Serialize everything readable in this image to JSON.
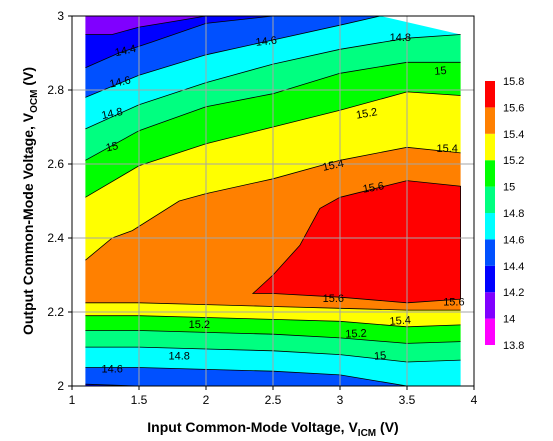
{
  "chart_data": {
    "type": "contour",
    "xlabel": {
      "main": "Input Common-Mode Voltage, V",
      "sub": "ICM",
      "unit": " (V)"
    },
    "ylabel": {
      "main": "Output Common-Mode Voltage, V",
      "sub": "OCM",
      "unit": " (V)"
    },
    "xlim": [
      1,
      4
    ],
    "ylim": [
      2,
      3
    ],
    "x_ticks": [
      "1",
      "1.5",
      "2",
      "2.5",
      "3",
      "3.5",
      "4"
    ],
    "y_ticks": [
      "2",
      "2.2",
      "2.4",
      "2.6",
      "2.8",
      "3"
    ],
    "grid": true,
    "data_x_range": [
      1.1,
      3.9
    ],
    "colorbar": {
      "levels": [
        13.8,
        14,
        14.2,
        14.4,
        14.6,
        14.8,
        15,
        15.2,
        15.4,
        15.6,
        15.8
      ],
      "tick_labels": [
        "13.8",
        "14",
        "14.2",
        "14.4",
        "14.6",
        "14.8",
        "15",
        "15.2",
        "15.4",
        "15.6",
        "15.8"
      ],
      "colors": [
        "#ff00ff",
        "#8000ff",
        "#0000ff",
        "#0050ff",
        "#00ffff",
        "#00ff80",
        "#00ff00",
        "#ffff00",
        "#ff8000",
        "#ff0000"
      ]
    },
    "bands": [
      {
        "level": 14.0,
        "color": "#8000ff",
        "lower": [
          [
            1.1,
            2.95
          ],
          [
            1.3,
            2.95
          ],
          [
            1.5,
            2.97
          ],
          [
            1.75,
            2.985
          ],
          [
            2.0,
            3.0
          ]
        ],
        "upper": null
      },
      {
        "level": 14.2,
        "color": "#0000ff",
        "lower": [
          [
            1.1,
            2.86
          ],
          [
            1.35,
            2.9
          ],
          [
            1.6,
            2.93
          ],
          [
            2.0,
            2.98
          ],
          [
            2.5,
            3.0
          ]
        ],
        "upper": [
          [
            1.1,
            2.95
          ],
          [
            1.3,
            2.95
          ],
          [
            1.5,
            2.97
          ],
          [
            1.75,
            2.985
          ],
          [
            2.0,
            3.0
          ]
        ]
      },
      {
        "level": 14.4,
        "color": "#0050ff",
        "lower": [
          [
            1.1,
            2.78
          ],
          [
            1.5,
            2.84
          ],
          [
            2.0,
            2.895
          ],
          [
            2.5,
            2.935
          ],
          [
            3.0,
            2.975
          ],
          [
            3.3,
            3.0
          ]
        ],
        "upper": [
          [
            1.1,
            2.86
          ],
          [
            1.35,
            2.9
          ],
          [
            1.6,
            2.93
          ],
          [
            2.0,
            2.98
          ],
          [
            2.5,
            3.0
          ]
        ]
      },
      {
        "level": 14.6,
        "color": "#00ffff",
        "lower": [
          [
            1.1,
            2.695
          ],
          [
            1.5,
            2.76
          ],
          [
            2.0,
            2.82
          ],
          [
            2.5,
            2.87
          ],
          [
            3.0,
            2.91
          ],
          [
            3.5,
            2.94
          ],
          [
            3.9,
            2.95
          ]
        ],
        "upper": [
          [
            1.1,
            2.78
          ],
          [
            1.5,
            2.84
          ],
          [
            2.0,
            2.895
          ],
          [
            2.5,
            2.935
          ],
          [
            3.0,
            2.975
          ],
          [
            3.3,
            3.0
          ]
        ]
      },
      {
        "level": 14.8,
        "color": "#00ff80",
        "lower": [
          [
            1.1,
            2.61
          ],
          [
            1.5,
            2.69
          ],
          [
            2.0,
            2.755
          ],
          [
            2.5,
            2.79
          ],
          [
            3.0,
            2.845
          ],
          [
            3.5,
            2.875
          ],
          [
            3.9,
            2.875
          ]
        ],
        "upper": [
          [
            1.1,
            2.695
          ],
          [
            1.5,
            2.76
          ],
          [
            2.0,
            2.82
          ],
          [
            2.5,
            2.87
          ],
          [
            3.0,
            2.91
          ],
          [
            3.5,
            2.94
          ],
          [
            3.9,
            2.95
          ]
        ]
      },
      {
        "level": 15.0,
        "color": "#00ff00",
        "lower": [
          [
            1.1,
            2.51
          ],
          [
            1.5,
            2.595
          ],
          [
            2.0,
            2.655
          ],
          [
            2.5,
            2.7
          ],
          [
            3.0,
            2.745
          ],
          [
            3.5,
            2.795
          ],
          [
            3.9,
            2.785
          ]
        ],
        "upper": [
          [
            1.1,
            2.61
          ],
          [
            1.5,
            2.69
          ],
          [
            2.0,
            2.755
          ],
          [
            2.5,
            2.79
          ],
          [
            3.0,
            2.845
          ],
          [
            3.5,
            2.875
          ],
          [
            3.9,
            2.875
          ]
        ]
      },
      {
        "level": 15.2,
        "color": "#ffff00",
        "lower": [
          [
            1.1,
            2.34
          ],
          [
            1.3,
            2.4
          ],
          [
            1.45,
            2.42
          ],
          [
            1.8,
            2.5
          ],
          [
            2.0,
            2.52
          ],
          [
            2.5,
            2.56
          ],
          [
            3.0,
            2.61
          ],
          [
            3.5,
            2.645
          ],
          [
            3.9,
            2.63
          ]
        ],
        "upper": [
          [
            1.1,
            2.51
          ],
          [
            1.5,
            2.595
          ],
          [
            2.0,
            2.655
          ],
          [
            2.5,
            2.7
          ],
          [
            3.0,
            2.745
          ],
          [
            3.5,
            2.795
          ],
          [
            3.9,
            2.785
          ]
        ]
      },
      {
        "level": 15.4,
        "color": "#ff8000",
        "lower": [
          [
            1.1,
            2.225
          ],
          [
            1.5,
            2.225
          ],
          [
            2.0,
            2.22
          ],
          [
            2.5,
            2.215
          ],
          [
            3.0,
            2.21
          ],
          [
            3.5,
            2.205
          ],
          [
            3.9,
            2.205
          ]
        ],
        "upper": [
          [
            1.1,
            2.34
          ],
          [
            1.3,
            2.4
          ],
          [
            1.45,
            2.42
          ],
          [
            1.8,
            2.5
          ],
          [
            2.0,
            2.52
          ],
          [
            2.5,
            2.56
          ],
          [
            3.0,
            2.61
          ],
          [
            3.5,
            2.645
          ],
          [
            3.9,
            2.63
          ]
        ]
      },
      {
        "level": 15.2,
        "color": "#ffff00",
        "lower": [
          [
            1.1,
            2.19
          ],
          [
            1.5,
            2.19
          ],
          [
            2.0,
            2.185
          ],
          [
            2.5,
            2.18
          ],
          [
            3.0,
            2.175
          ],
          [
            3.5,
            2.16
          ],
          [
            3.9,
            2.165
          ]
        ],
        "upper": [
          [
            1.1,
            2.225
          ],
          [
            1.5,
            2.225
          ],
          [
            2.0,
            2.22
          ],
          [
            2.5,
            2.215
          ],
          [
            3.0,
            2.21
          ],
          [
            3.5,
            2.205
          ],
          [
            3.9,
            2.205
          ]
        ]
      },
      {
        "level": 15.0,
        "color": "#00ff00",
        "lower": [
          [
            1.1,
            2.15
          ],
          [
            1.5,
            2.15
          ],
          [
            2.0,
            2.145
          ],
          [
            2.5,
            2.14
          ],
          [
            3.0,
            2.13
          ],
          [
            3.5,
            2.115
          ],
          [
            3.9,
            2.12
          ]
        ],
        "upper": [
          [
            1.1,
            2.19
          ],
          [
            1.5,
            2.19
          ],
          [
            2.0,
            2.185
          ],
          [
            2.5,
            2.18
          ],
          [
            3.0,
            2.175
          ],
          [
            3.5,
            2.16
          ],
          [
            3.9,
            2.165
          ]
        ]
      },
      {
        "level": 14.8,
        "color": "#00ff80",
        "lower": [
          [
            1.1,
            2.105
          ],
          [
            1.5,
            2.105
          ],
          [
            2.0,
            2.1
          ],
          [
            2.5,
            2.095
          ],
          [
            3.0,
            2.085
          ],
          [
            3.5,
            2.065
          ],
          [
            3.9,
            2.07
          ]
        ],
        "upper": [
          [
            1.1,
            2.15
          ],
          [
            1.5,
            2.15
          ],
          [
            2.0,
            2.145
          ],
          [
            2.5,
            2.14
          ],
          [
            3.0,
            2.13
          ],
          [
            3.5,
            2.115
          ],
          [
            3.9,
            2.12
          ]
        ]
      },
      {
        "level": 14.6,
        "color": "#00ffff",
        "lower": [
          [
            1.1,
            2.05
          ],
          [
            1.5,
            2.05
          ],
          [
            2.0,
            2.045
          ],
          [
            2.5,
            2.04
          ],
          [
            3.0,
            2.03
          ],
          [
            3.5,
            2.0
          ],
          [
            3.9,
            2.0
          ]
        ],
        "upper": [
          [
            1.1,
            2.105
          ],
          [
            1.5,
            2.105
          ],
          [
            2.0,
            2.1
          ],
          [
            2.5,
            2.095
          ],
          [
            3.0,
            2.085
          ],
          [
            3.5,
            2.065
          ],
          [
            3.9,
            2.07
          ]
        ]
      },
      {
        "level": 14.4,
        "color": "#0050ff",
        "lower": [
          [
            1.1,
            2.005
          ],
          [
            1.5,
            2.0
          ],
          [
            2.0,
            2.0
          ],
          [
            2.5,
            2.0
          ]
        ],
        "upper": [
          [
            1.1,
            2.05
          ],
          [
            1.5,
            2.05
          ],
          [
            2.0,
            2.045
          ],
          [
            2.5,
            2.04
          ],
          [
            3.0,
            2.03
          ],
          [
            3.5,
            2.0
          ],
          [
            3.9,
            2.0
          ]
        ]
      },
      {
        "level": 14.2,
        "color": "#0000ff",
        "lower": null,
        "upper": [
          [
            1.1,
            2.005
          ],
          [
            1.5,
            2.0
          ],
          [
            2.0,
            2.0
          ],
          [
            2.5,
            2.0
          ]
        ]
      }
    ],
    "peak_region": {
      "level": 15.6,
      "color": "#ff0000",
      "points": [
        [
          2.35,
          2.25
        ],
        [
          2.5,
          2.25
        ],
        [
          3.0,
          2.24
        ],
        [
          3.5,
          2.225
        ],
        [
          3.9,
          2.235
        ],
        [
          3.9,
          2.54
        ],
        [
          3.5,
          2.555
        ],
        [
          3.0,
          2.51
        ],
        [
          2.85,
          2.48
        ],
        [
          2.7,
          2.38
        ],
        [
          2.5,
          2.3
        ]
      ]
    },
    "contour_labels": [
      {
        "text": "14.4",
        "x": 1.4,
        "y": 2.905,
        "angle": -12
      },
      {
        "text": "14.6",
        "x": 1.36,
        "y": 2.82,
        "angle": -12
      },
      {
        "text": "14.6",
        "x": 2.45,
        "y": 2.93,
        "angle": -6
      },
      {
        "text": "14.8",
        "x": 1.3,
        "y": 2.735,
        "angle": -12
      },
      {
        "text": "14.8",
        "x": 3.45,
        "y": 2.94,
        "angle": 0
      },
      {
        "text": "15",
        "x": 1.3,
        "y": 2.645,
        "angle": -12
      },
      {
        "text": "15",
        "x": 3.75,
        "y": 2.85,
        "angle": -5
      },
      {
        "text": "15.2",
        "x": 3.2,
        "y": 2.735,
        "angle": -10
      },
      {
        "text": "15.4",
        "x": 2.95,
        "y": 2.595,
        "angle": -12
      },
      {
        "text": "15.4",
        "x": 3.8,
        "y": 2.64,
        "angle": 0
      },
      {
        "text": "15.6",
        "x": 3.25,
        "y": 2.535,
        "angle": -10
      },
      {
        "text": "15.6",
        "x": 2.95,
        "y": 2.235,
        "angle": 0
      },
      {
        "text": "15.6",
        "x": 3.85,
        "y": 2.225,
        "angle": 0
      },
      {
        "text": "15.4",
        "x": 3.45,
        "y": 2.175,
        "angle": -4
      },
      {
        "text": "15.2",
        "x": 1.95,
        "y": 2.165,
        "angle": 0
      },
      {
        "text": "15.2",
        "x": 3.12,
        "y": 2.14,
        "angle": -3
      },
      {
        "text": "15",
        "x": 3.3,
        "y": 2.08,
        "angle": -5
      },
      {
        "text": "14.8",
        "x": 1.8,
        "y": 2.08,
        "angle": 0
      },
      {
        "text": "14.6",
        "x": 1.3,
        "y": 2.045,
        "angle": 0
      }
    ]
  }
}
